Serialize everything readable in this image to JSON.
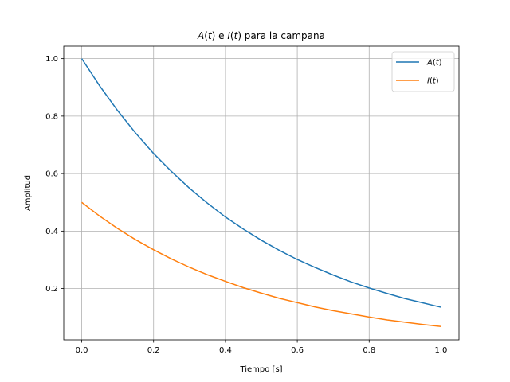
{
  "chart_data": {
    "type": "line",
    "title": "A(t) e I(t) para la campana",
    "title_parts": [
      {
        "text": "A",
        "italic": true
      },
      {
        "text": "(",
        "italic": false
      },
      {
        "text": "t",
        "italic": true
      },
      {
        "text": ") e ",
        "italic": false
      },
      {
        "text": "I",
        "italic": true
      },
      {
        "text": "(",
        "italic": false
      },
      {
        "text": "t",
        "italic": true
      },
      {
        "text": ") para la campana",
        "italic": false
      }
    ],
    "xlabel": "Tiempo [s]",
    "ylabel": "Amplitud",
    "xlim": [
      -0.05,
      1.05
    ],
    "ylim": [
      0.0217,
      1.0433
    ],
    "xticks": [
      0.0,
      0.2,
      0.4,
      0.6,
      0.8,
      1.0
    ],
    "xtick_labels": [
      "0.0",
      "0.2",
      "0.4",
      "0.6",
      "0.8",
      "1.0"
    ],
    "yticks": [
      0.2,
      0.4,
      0.6,
      0.8,
      1.0
    ],
    "ytick_labels": [
      "0.2",
      "0.4",
      "0.6",
      "0.8",
      "1.0"
    ],
    "grid": true,
    "legend_position": "top-right",
    "x": [
      0.0,
      0.05,
      0.1,
      0.15,
      0.2,
      0.25,
      0.3,
      0.35,
      0.4,
      0.45,
      0.5,
      0.55,
      0.6,
      0.65,
      0.7,
      0.75,
      0.8,
      0.85,
      0.9,
      0.95,
      1.0
    ],
    "series": [
      {
        "name": "A(t)",
        "legend_parts": [
          {
            "text": "A",
            "italic": true
          },
          {
            "text": "(",
            "italic": false
          },
          {
            "text": "t",
            "italic": true
          },
          {
            "text": ")",
            "italic": false
          }
        ],
        "color": "#1f77b4",
        "values": [
          1.0,
          0.905,
          0.819,
          0.741,
          0.67,
          0.607,
          0.549,
          0.497,
          0.449,
          0.407,
          0.368,
          0.333,
          0.301,
          0.273,
          0.247,
          0.223,
          0.202,
          0.183,
          0.165,
          0.15,
          0.135
        ]
      },
      {
        "name": "I(t)",
        "legend_parts": [
          {
            "text": "I",
            "italic": true
          },
          {
            "text": "(",
            "italic": false
          },
          {
            "text": "t",
            "italic": true
          },
          {
            "text": ")",
            "italic": false
          }
        ],
        "color": "#ff7f0e",
        "values": [
          0.5,
          0.452,
          0.409,
          0.37,
          0.335,
          0.303,
          0.274,
          0.248,
          0.225,
          0.203,
          0.184,
          0.166,
          0.151,
          0.136,
          0.123,
          0.112,
          0.101,
          0.091,
          0.083,
          0.075,
          0.068
        ]
      }
    ]
  }
}
